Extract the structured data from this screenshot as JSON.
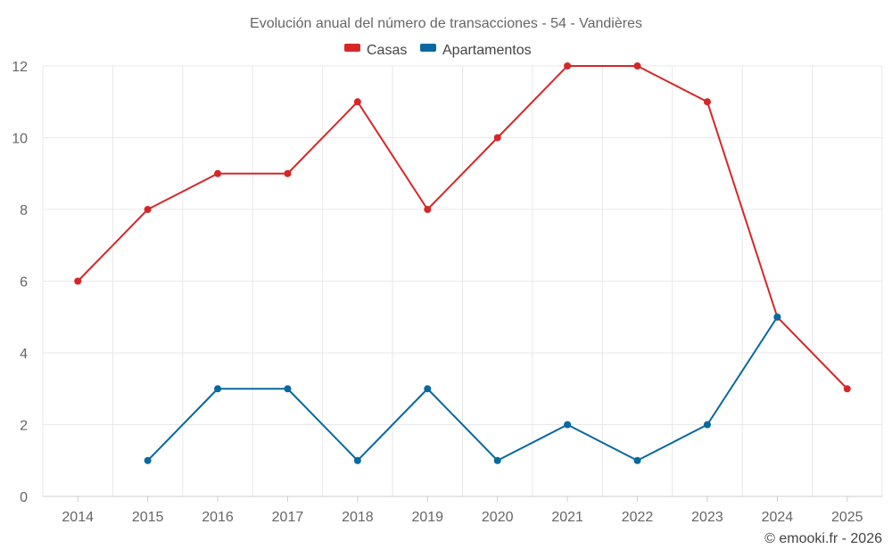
{
  "chart_data": {
    "type": "line",
    "title": "Evolución anual del número de transacciones - 54 - Vandières",
    "categories": [
      "2014",
      "2015",
      "2016",
      "2017",
      "2018",
      "2019",
      "2020",
      "2021",
      "2022",
      "2023",
      "2024",
      "2025"
    ],
    "series": [
      {
        "name": "Casas",
        "color": "#d62728",
        "values": [
          6,
          8,
          9,
          9,
          11,
          8,
          10,
          12,
          12,
          11,
          5,
          3
        ]
      },
      {
        "name": "Apartamentos",
        "color": "#0868a0",
        "values": [
          null,
          1,
          3,
          3,
          1,
          3,
          1,
          2,
          1,
          2,
          5,
          null
        ]
      }
    ],
    "ylim": [
      0,
      12
    ],
    "yticks": [
      0,
      2,
      4,
      6,
      8,
      10,
      12
    ],
    "xlabel": "",
    "ylabel": "",
    "grid": true,
    "legend": "top-center"
  },
  "credit": "© emooki.fr - 2026"
}
